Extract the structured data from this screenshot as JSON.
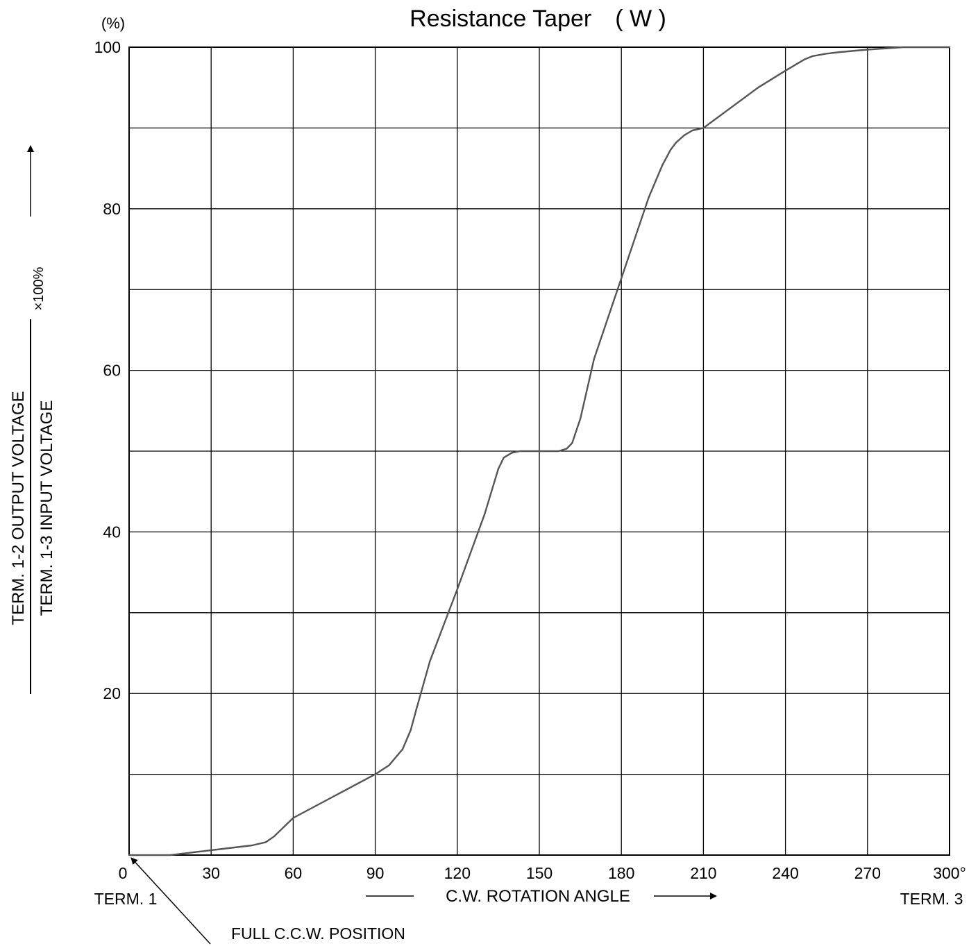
{
  "chart_data": {
    "type": "line",
    "title": "Resistance Taper　( W )",
    "y_unit": "(%)",
    "x_tick_labels": [
      "0",
      "30",
      "60",
      "90",
      "120",
      "150",
      "180",
      "210",
      "240",
      "270",
      "300°"
    ],
    "y_tick_labels": [
      "20",
      "40",
      "60",
      "80",
      "100"
    ],
    "xlim": [
      0,
      300
    ],
    "ylim": [
      0,
      100
    ],
    "grid": true,
    "x_axis_label": "C.W. ROTATION ANGLE",
    "y_axis_label": {
      "numerator": "TERM.   1-2 OUTPUT  VOLTAGE",
      "denominator": "TERM.   1-3 INPUT    VOLTAGE",
      "multiplier": "×100%"
    },
    "annotations": {
      "term1": "TERM. 1",
      "term3": "TERM. 3",
      "full_ccw": "FULL C.C.W. POSITION"
    },
    "series": [
      {
        "x": [
          0,
          15,
          30,
          45,
          50,
          53,
          60,
          75,
          90,
          95,
          100,
          103,
          105,
          110,
          120,
          130,
          135,
          137,
          140,
          143,
          147,
          150,
          157,
          160,
          162,
          163,
          165,
          170,
          180,
          190,
          195,
          198,
          200,
          203,
          206,
          210,
          220,
          230,
          240,
          247,
          250,
          255,
          260,
          270,
          283,
          300
        ],
        "y": [
          0,
          0,
          0.6,
          1.2,
          1.6,
          2.3,
          4.6,
          7.3,
          10,
          11.1,
          13.1,
          15.5,
          18,
          24,
          32.9,
          42.2,
          47.8,
          49.2,
          49.8,
          50,
          50,
          50,
          50,
          50.3,
          51,
          52,
          54,
          61.4,
          71.4,
          81.4,
          85.4,
          87.3,
          88.2,
          89.1,
          89.7,
          90,
          92.5,
          95,
          97.1,
          98.5,
          98.9,
          99.2,
          99.4,
          99.7,
          100,
          100
        ]
      }
    ]
  }
}
